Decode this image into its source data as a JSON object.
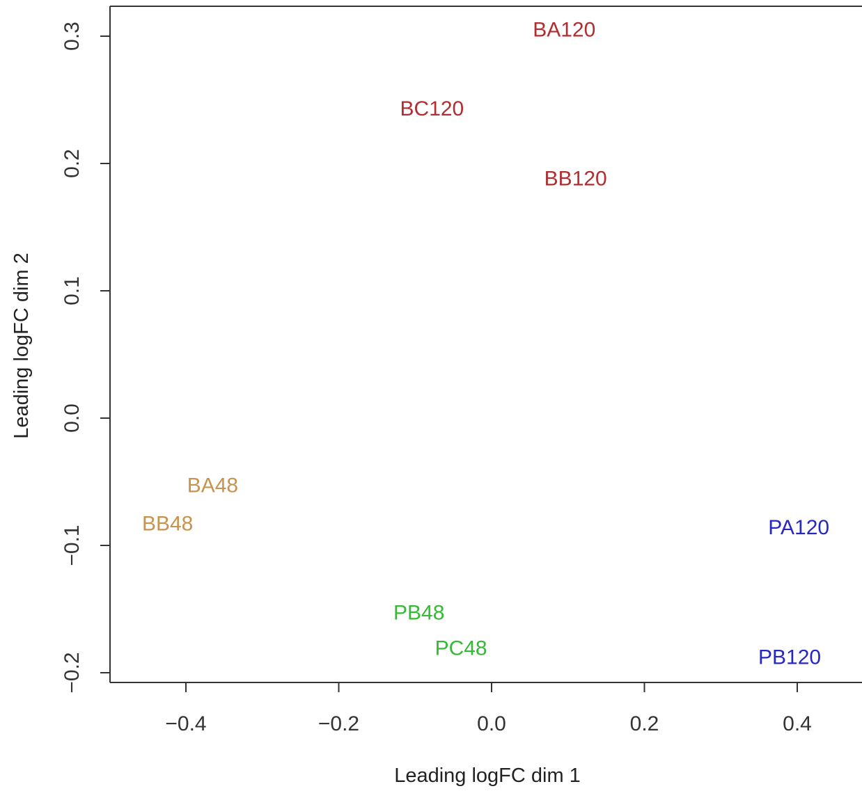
{
  "chart_data": {
    "type": "scatter",
    "xlabel": "Leading logFC dim 1",
    "ylabel": "Leading logFC dim 2",
    "xlim": [
      -0.5,
      0.5
    ],
    "ylim": [
      -0.208,
      0.325
    ],
    "xticks": [
      -0.4,
      -0.2,
      0.0,
      0.2,
      0.4
    ],
    "xtick_labels": [
      "−0.4",
      "−0.2",
      "0.0",
      "0.2",
      "0.4"
    ],
    "yticks": [
      -0.2,
      -0.1,
      0.0,
      0.1,
      0.2,
      0.3
    ],
    "ytick_labels": [
      "−0.2",
      "−0.1",
      "0.0",
      "0.1",
      "0.2",
      "0.3"
    ],
    "grid": false,
    "points": [
      {
        "label": "BA120",
        "x": 0.095,
        "y": 0.305,
        "color": "#b22d30"
      },
      {
        "label": "BC120",
        "x": -0.078,
        "y": 0.243,
        "color": "#b22d30"
      },
      {
        "label": "BB120",
        "x": 0.11,
        "y": 0.188,
        "color": "#b22d30"
      },
      {
        "label": "BA48",
        "x": -0.365,
        "y": -0.053,
        "color": "#c8934f"
      },
      {
        "label": "BB48",
        "x": -0.424,
        "y": -0.083,
        "color": "#c8934f"
      },
      {
        "label": "PB48",
        "x": -0.095,
        "y": -0.153,
        "color": "#33bb33"
      },
      {
        "label": "PC48",
        "x": -0.04,
        "y": -0.181,
        "color": "#33bb33"
      },
      {
        "label": "PA120",
        "x": 0.402,
        "y": -0.086,
        "color": "#2727c2"
      },
      {
        "label": "PB120",
        "x": 0.39,
        "y": -0.188,
        "color": "#2727c2"
      }
    ]
  }
}
